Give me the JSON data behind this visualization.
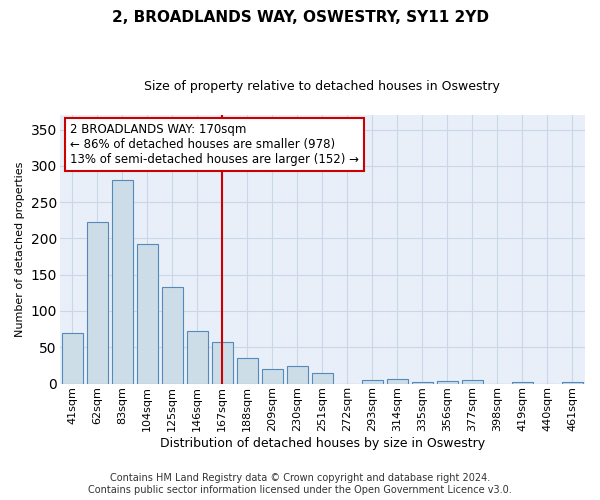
{
  "title": "2, BROADLANDS WAY, OSWESTRY, SY11 2YD",
  "subtitle": "Size of property relative to detached houses in Oswestry",
  "xlabel": "Distribution of detached houses by size in Oswestry",
  "ylabel": "Number of detached properties",
  "footer1": "Contains HM Land Registry data © Crown copyright and database right 2024.",
  "footer2": "Contains public sector information licensed under the Open Government Licence v3.0.",
  "bar_labels": [
    "41sqm",
    "62sqm",
    "83sqm",
    "104sqm",
    "125sqm",
    "146sqm",
    "167sqm",
    "188sqm",
    "209sqm",
    "230sqm",
    "251sqm",
    "272sqm",
    "293sqm",
    "314sqm",
    "335sqm",
    "356sqm",
    "377sqm",
    "398sqm",
    "419sqm",
    "440sqm",
    "461sqm"
  ],
  "bar_values": [
    70,
    222,
    280,
    192,
    133,
    73,
    57,
    35,
    20,
    24,
    14,
    0,
    5,
    6,
    2,
    4,
    5,
    0,
    2,
    0,
    2
  ],
  "bar_color": "#ccdde8",
  "bar_edgecolor": "#5588bb",
  "vline_x": 6,
  "vline_color": "#cc0000",
  "annotation_line1": "2 BROADLANDS WAY: 170sqm",
  "annotation_line2": "← 86% of detached houses are smaller (978)",
  "annotation_line3": "13% of semi-detached houses are larger (152) →",
  "annotation_box_facecolor": "#ffffff",
  "annotation_box_edgecolor": "#cc0000",
  "ylim": [
    0,
    370
  ],
  "yticks": [
    0,
    50,
    100,
    150,
    200,
    250,
    300,
    350
  ],
  "grid_color": "#c8d8e8",
  "fig_facecolor": "#ffffff",
  "plot_facecolor": "#e8eff8",
  "title_fontsize": 11,
  "subtitle_fontsize": 9,
  "tick_fontsize": 8,
  "ylabel_fontsize": 8,
  "xlabel_fontsize": 9,
  "footer_fontsize": 7
}
